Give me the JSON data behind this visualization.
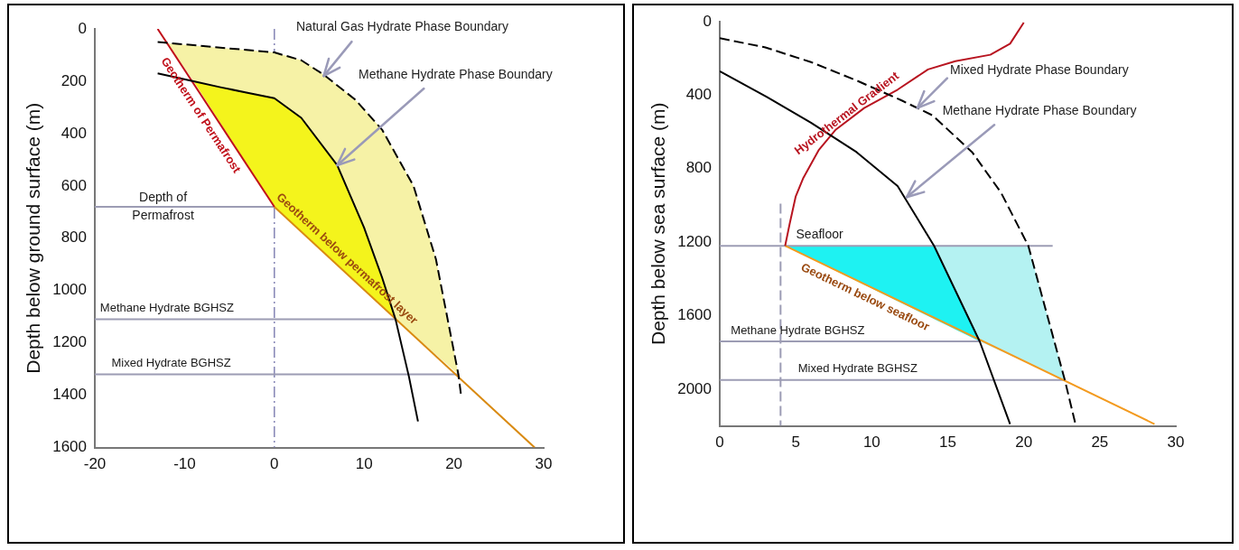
{
  "chart_data": [
    {
      "type": "line",
      "ylabel": "Depth below ground surface (m)",
      "xlim": [
        -20,
        30
      ],
      "xticks": [
        -20,
        -10,
        0,
        10,
        20,
        30
      ],
      "ylim": [
        1600,
        0
      ],
      "yticks": [
        0,
        200,
        400,
        600,
        800,
        1000,
        1200,
        1400,
        1600
      ],
      "series": [
        {
          "type": "area",
          "color": "#f6f2a6",
          "x": [
            -11.9,
            -9,
            -6,
            -3,
            0,
            3,
            7,
            10,
            12,
            13.5,
            20.5,
            20.5,
            18,
            15.5,
            12,
            9,
            5.5,
            3,
            0,
            -11.9
          ],
          "values": [
            55,
            200,
            223,
            244,
            265,
            340,
            521,
            760,
            950,
            1110,
            1320,
            1320,
            880,
            600,
            385,
            270,
            175,
            120,
            90,
            55
          ]
        },
        {
          "type": "area",
          "color": "#f4f41c",
          "x": [
            -9,
            -6,
            -3,
            0,
            3,
            7,
            10,
            12,
            13.5,
            0,
            -9
          ],
          "values": [
            200,
            223,
            244,
            265,
            340,
            521,
            760,
            950,
            1110,
            680,
            200
          ]
        },
        {
          "type": "line",
          "color": "#000000",
          "line_style": "dashed",
          "x": [
            -13,
            0,
            3,
            5.5,
            9,
            12,
            15.5,
            18,
            20.5,
            20.8
          ],
          "values": [
            50,
            90,
            120,
            175,
            270,
            385,
            600,
            880,
            1320,
            1400
          ]
        },
        {
          "type": "line",
          "color": "#000000",
          "line_style": "solid",
          "x": [
            -13,
            -9,
            -6,
            -3,
            0,
            3,
            7,
            10,
            12,
            13.5,
            15,
            16
          ],
          "values": [
            170,
            200,
            223,
            244,
            265,
            340,
            521,
            760,
            950,
            1110,
            1330,
            1500
          ]
        },
        {
          "type": "line",
          "name": "Geotherm of Permafrost",
          "color": "#c0101a",
          "line_style": "solid",
          "x": [
            -13,
            0
          ],
          "values": [
            0,
            680
          ]
        },
        {
          "type": "line",
          "name": "Geotherm below permafrost layer",
          "color": "#d98a12",
          "line_style": "solid",
          "x": [
            0,
            29
          ],
          "values": [
            680,
            1600
          ]
        },
        {
          "type": "line",
          "name": "Depth of Permafrost",
          "color": "#9c9cb4",
          "line_style": "solid",
          "x": [
            -20,
            0
          ],
          "values": [
            680,
            680
          ]
        },
        {
          "type": "line",
          "name": "Methane Hydrate BGHSZ",
          "color": "#9c9cb4",
          "line_style": "solid",
          "x": [
            -20,
            13.5
          ],
          "values": [
            1110,
            1110
          ]
        },
        {
          "type": "line",
          "name": "Mixed Hydrate BGHSZ",
          "color": "#9c9cb4",
          "line_style": "solid",
          "x": [
            -20,
            20.5
          ],
          "values": [
            1320,
            1320
          ]
        }
      ],
      "ref_lines": [
        {
          "axis": "x",
          "value": 0,
          "color": "#8484b4",
          "line_style": "dashed"
        }
      ],
      "annotations": [
        {
          "text": "Natural Gas Hydrate Phase Boundary",
          "x": 5.5,
          "y": 180
        },
        {
          "text": "Methane Hydrate Phase Boundary",
          "x": 7,
          "y": 521
        }
      ]
    },
    {
      "type": "line",
      "ylabel": "Depth below sea surface (m)",
      "xlim": [
        0,
        30
      ],
      "xticks": [
        0,
        5,
        10,
        15,
        20,
        25,
        30
      ],
      "ylim": [
        2200,
        0
      ],
      "yticks": [
        0,
        400,
        800,
        1200,
        1600,
        2000
      ],
      "series": [
        {
          "type": "area",
          "color": "#b4f2f2",
          "x": [
            14.1,
            20.3,
            22.7,
            17.1,
            14.1
          ],
          "values": [
            1220,
            1220,
            1950,
            1740,
            1220
          ]
        },
        {
          "type": "area",
          "color": "#1ef2f2",
          "x": [
            4.3,
            14.1,
            17.1,
            4.3
          ],
          "values": [
            1220,
            1220,
            1740,
            1220
          ]
        },
        {
          "type": "line",
          "color": "#000000",
          "line_style": "dashed",
          "x": [
            0,
            3,
            6,
            9,
            12,
            14,
            16.6,
            18.5,
            20.3,
            22.7,
            23.4
          ],
          "values": [
            90,
            140,
            220,
            320,
            430,
            510,
            710,
            930,
            1220,
            1950,
            2190
          ]
        },
        {
          "type": "line",
          "color": "#000000",
          "line_style": "solid",
          "x": [
            0,
            3.1,
            6,
            9,
            11.7,
            14.1,
            17.1,
            19.1
          ],
          "values": [
            270,
            410,
            550,
            710,
            895,
            1220,
            1740,
            2190
          ]
        },
        {
          "type": "line",
          "name": "Hydrothermal Gradient",
          "color": "#b81420",
          "line_style": "solid",
          "x": [
            4.3,
            4.6,
            5,
            5.5,
            6.5,
            7.6,
            9.5,
            11.7,
            13.7,
            15.5,
            17.8,
            19.1,
            20
          ],
          "values": [
            1220,
            1100,
            950,
            850,
            700,
            590,
            470,
            370,
            260,
            215,
            180,
            120,
            5
          ]
        },
        {
          "type": "line",
          "name": "Geotherm below seafloor",
          "color": "#f39a1e",
          "line_style": "solid",
          "x": [
            4.3,
            28.6
          ],
          "values": [
            1220,
            2190
          ]
        },
        {
          "type": "line",
          "name": "Seafloor",
          "color": "#9c9cb4",
          "line_style": "solid",
          "x": [
            0,
            21.9
          ],
          "values": [
            1220,
            1220
          ]
        },
        {
          "type": "line",
          "color": "#9c9cb4",
          "line_style": "dashed",
          "x": [
            4,
            4
          ],
          "values": [
            990,
            2200
          ]
        },
        {
          "type": "line",
          "name": "Methane Hydrate BGHSZ",
          "color": "#9c9cb4",
          "line_style": "solid",
          "x": [
            0,
            17.1
          ],
          "values": [
            1740,
            1740
          ]
        },
        {
          "type": "line",
          "name": "Mixed Hydrate BGHSZ",
          "color": "#9c9cb4",
          "line_style": "solid",
          "x": [
            0,
            22.7
          ],
          "values": [
            1950,
            1950
          ]
        }
      ],
      "annotations": [
        {
          "text": "Mixed Hydrate Phase Boundary",
          "x": 13,
          "y": 470
        },
        {
          "text": "Methane Hydrate Phase Boundary",
          "x": 12.3,
          "y": 955
        }
      ]
    }
  ]
}
